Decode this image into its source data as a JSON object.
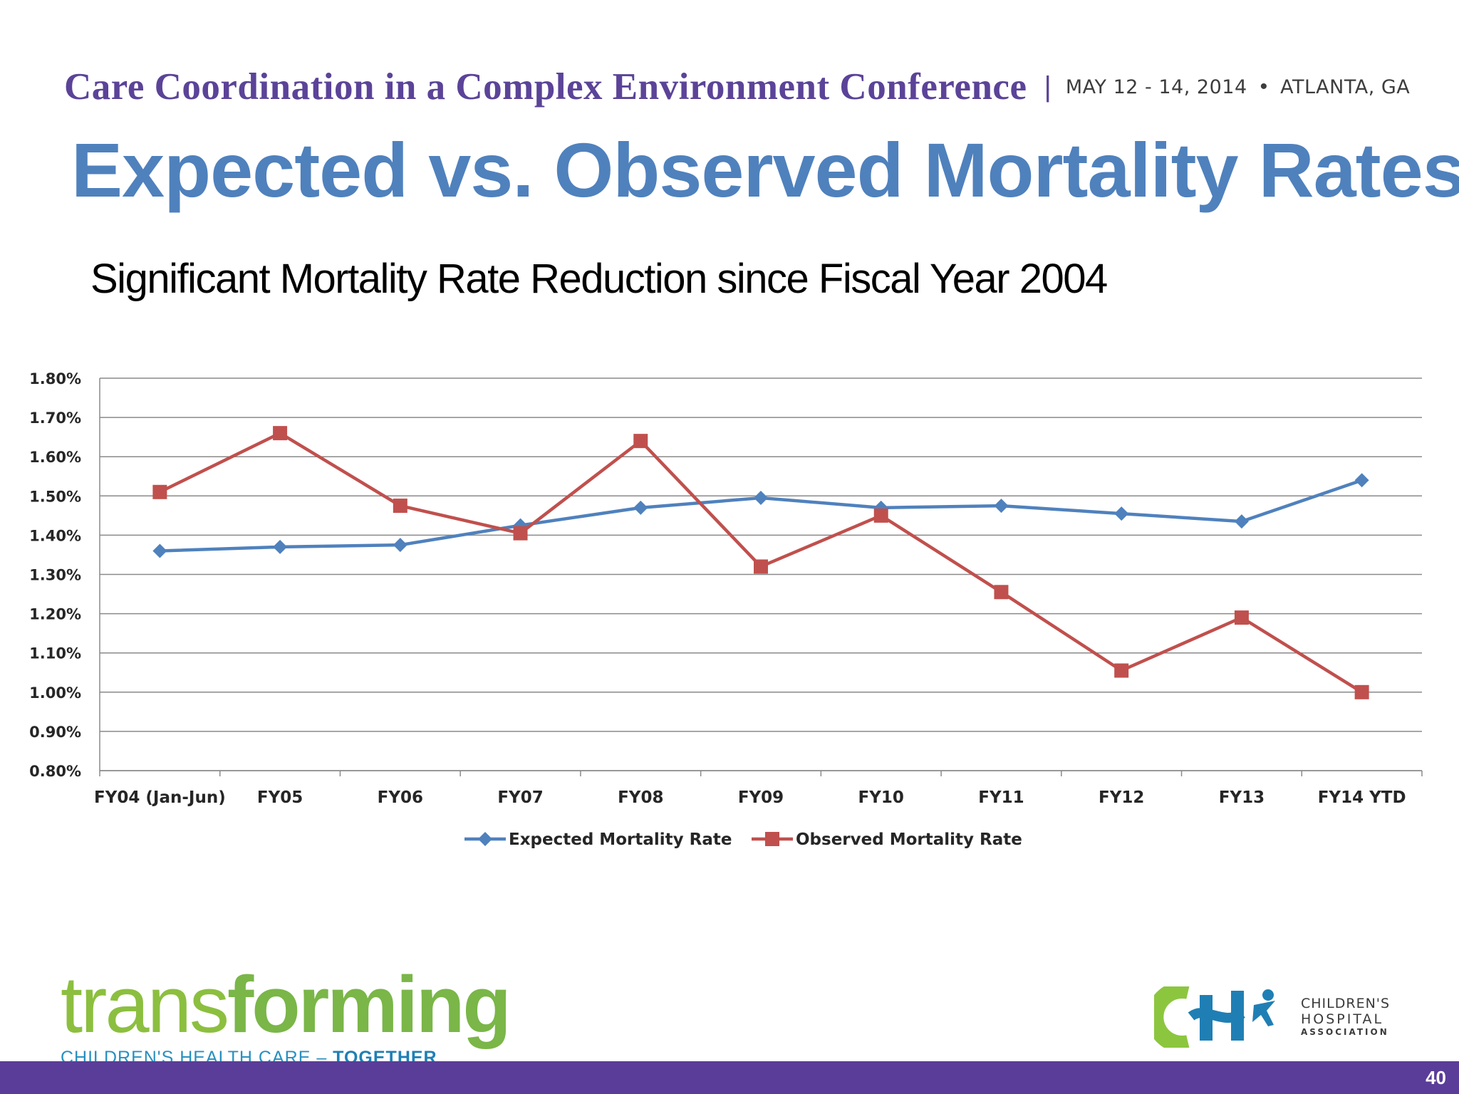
{
  "header": {
    "conference_title": "Care Coordination in a Complex Environment Conference",
    "separator": "|",
    "date": "MAY 12 - 14, 2014",
    "bullet": "•",
    "location": "ATLANTA, GA"
  },
  "slide": {
    "title": "Expected vs. Observed Mortality Rates",
    "subtitle": "Significant Mortality Rate Reduction since Fiscal Year 2004"
  },
  "chart_data": {
    "type": "line",
    "categories": [
      "FY04 (Jan-Jun)",
      "FY05",
      "FY06",
      "FY07",
      "FY08",
      "FY09",
      "FY10",
      "FY11",
      "FY12",
      "FY13",
      "FY14 YTD"
    ],
    "series": [
      {
        "name": "Expected Mortality Rate",
        "color": "#4f81bd",
        "marker": "diamond",
        "values": [
          1.36,
          1.37,
          1.375,
          1.425,
          1.47,
          1.495,
          1.47,
          1.475,
          1.455,
          1.435,
          1.54
        ]
      },
      {
        "name": "Observed Mortality Rate",
        "color": "#c0504d",
        "marker": "square",
        "values": [
          1.51,
          1.66,
          1.475,
          1.405,
          1.64,
          1.32,
          1.45,
          1.255,
          1.055,
          1.19,
          1.0
        ]
      }
    ],
    "ylim": [
      0.8,
      1.8
    ],
    "ytick_labels": [
      "0.80%",
      "0.90%",
      "1.00%",
      "1.10%",
      "1.20%",
      "1.30%",
      "1.40%",
      "1.50%",
      "1.60%",
      "1.70%",
      "1.80%"
    ],
    "ytick_values": [
      0.8,
      0.9,
      1.0,
      1.1,
      1.2,
      1.3,
      1.4,
      1.5,
      1.6,
      1.7,
      1.8
    ],
    "grid": true,
    "legend_position": "bottom",
    "title": "",
    "xlabel": "",
    "ylabel": ""
  },
  "footer": {
    "logo_word_light": "trans",
    "logo_word_bold": "forming",
    "logo_tagline": "CHILDREN'S HEALTH CARE – ",
    "logo_tagline_bold": "TOGETHER",
    "cha_line1": "CHILDREN'S",
    "cha_line2": "HOSPITAL",
    "cha_line3": "ASSOCIATION",
    "page_number": "40",
    "bar_color": "#5a3d99"
  }
}
